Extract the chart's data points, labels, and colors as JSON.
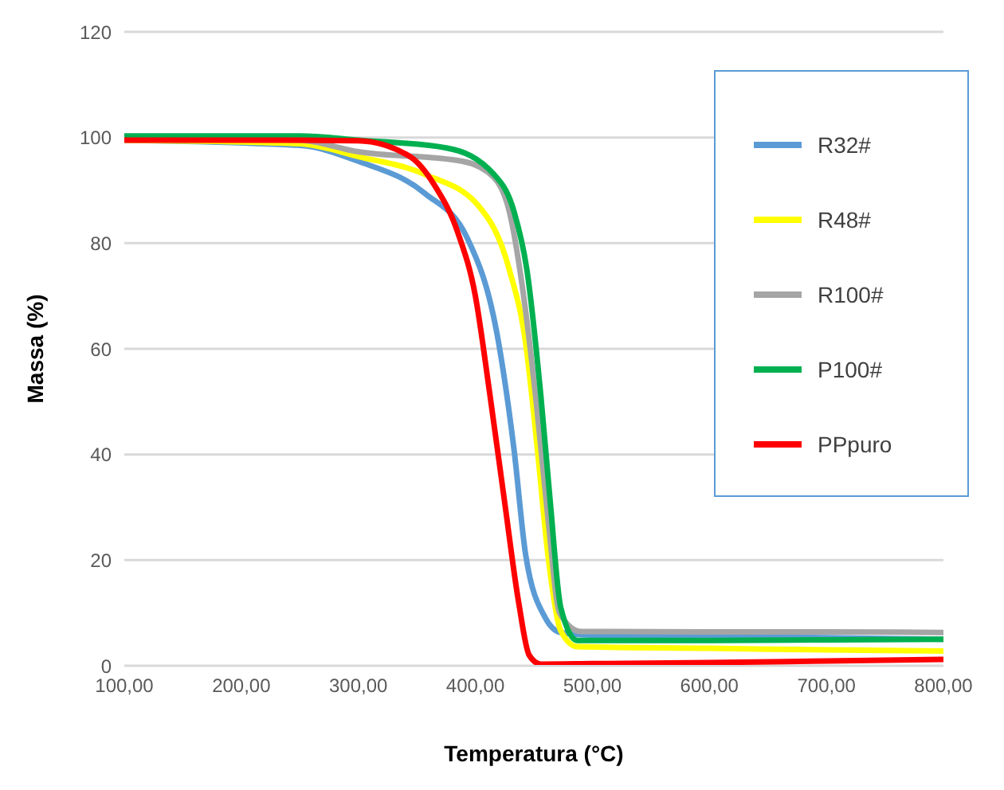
{
  "chart_data": {
    "type": "line",
    "xlabel": "Temperatura (°C)",
    "ylabel": "Massa (%)",
    "xlim": [
      100,
      800
    ],
    "xticks": [
      {
        "value": 100,
        "label": "100,00"
      },
      {
        "value": 200,
        "label": "200,00"
      },
      {
        "value": 300,
        "label": "300,00"
      },
      {
        "value": 400,
        "label": "400,00"
      },
      {
        "value": 500,
        "label": "500,00"
      },
      {
        "value": 600,
        "label": "600,00"
      },
      {
        "value": 700,
        "label": "700,00"
      },
      {
        "value": 800,
        "label": "800,00"
      }
    ],
    "ylim": [
      0,
      120
    ],
    "yticks": [
      0,
      20,
      40,
      60,
      80,
      100,
      120
    ],
    "grid": "y",
    "legend": "top right",
    "marker": "none",
    "line_style": "solid",
    "series": [
      {
        "name": "R32#",
        "color": "#5b9bd5",
        "x": [
          100,
          250,
          300,
          357,
          393,
          420,
          433,
          443,
          460,
          473,
          500,
          600,
          700,
          800
        ],
        "values": [
          99.5,
          98.5,
          95.5,
          89.4,
          81,
          61,
          41,
          21,
          9,
          6.3,
          5.8,
          5.6,
          5.3,
          5
        ]
      },
      {
        "name": "R48#",
        "color": "#ffff00",
        "x": [
          100,
          250,
          300,
          357,
          403,
          429,
          443,
          453,
          462,
          473,
          487,
          600,
          700,
          800
        ],
        "values": [
          99.5,
          98.8,
          96.4,
          93,
          87,
          75,
          61,
          41,
          21,
          6.6,
          3.6,
          3.3,
          3,
          2.8
        ]
      },
      {
        "name": "R100#",
        "color": "#a5a5a5",
        "x": [
          100,
          250,
          300,
          389,
          416,
          429,
          440,
          452,
          462,
          472,
          490,
          600,
          700,
          800
        ],
        "values": [
          100,
          99.5,
          97.3,
          95.5,
          92.4,
          86,
          72,
          50,
          28,
          10,
          6.5,
          6.4,
          6.4,
          6.3
        ]
      },
      {
        "name": "P100#",
        "color": "#00b050",
        "x": [
          100,
          250,
          300,
          376,
          416,
          433,
          444,
          456,
          464,
          473,
          487,
          600,
          700,
          800
        ],
        "values": [
          100.3,
          100.3,
          99.5,
          98,
          93,
          86,
          75,
          51,
          31,
          11,
          4.8,
          4.8,
          4.9,
          5
        ]
      },
      {
        "name": "PPpuro",
        "color": "#ff0000",
        "x": [
          100,
          250,
          300,
          344,
          365,
          385,
          400,
          412,
          425,
          437,
          446,
          456,
          500,
          600,
          700,
          800
        ],
        "values": [
          99.5,
          99.5,
          99.4,
          96.4,
          91,
          82,
          70,
          52,
          31,
          12,
          2,
          0.3,
          0.4,
          0.6,
          0.9,
          1.2
        ]
      }
    ]
  }
}
